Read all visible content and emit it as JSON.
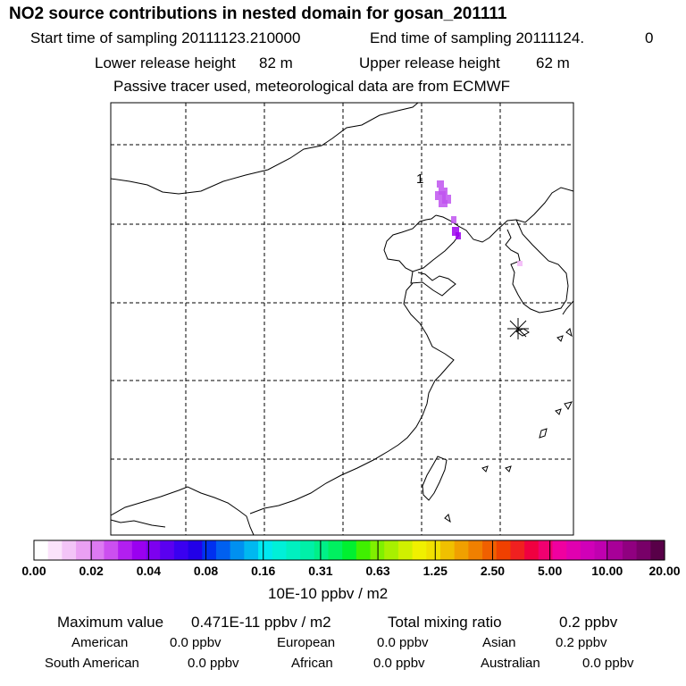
{
  "header": {
    "title": "NO2 source contributions in nested domain for gosan_201111",
    "start_label": "Start time of sampling 20111123.210000",
    "end_label": "End time of sampling 20111124.",
    "end_value": "0",
    "lower_label": "Lower release height",
    "lower_value": "82 m",
    "upper_label": "Upper release height",
    "upper_value": "62 m",
    "note": "Passive tracer used, meteorological data are from ECMWF"
  },
  "map": {
    "marker_label": "1",
    "receptor_symbol": "star-marker"
  },
  "colorbar": {
    "ticks": [
      "0.00",
      "0.02",
      "0.04",
      "0.08",
      "0.16",
      "0.31",
      "0.63",
      "1.25",
      "2.50",
      "5.00",
      "10.00",
      "20.00"
    ],
    "colors": [
      "#ffffff",
      "#fbe3fb",
      "#f3c4f7",
      "#eaa0f3",
      "#dd7af2",
      "#cc4ff0",
      "#b21ff0",
      "#9a00f0",
      "#7d00f0",
      "#5a00f0",
      "#3a00f0",
      "#2200e8",
      "#0030f0",
      "#0060f0",
      "#0090f0",
      "#00b8f0",
      "#00e8f0",
      "#00f0d8",
      "#00f0c0",
      "#00f0a8",
      "#00f088",
      "#00f060",
      "#00f030",
      "#40f000",
      "#80f000",
      "#a8f000",
      "#d0f000",
      "#f0f000",
      "#f0e000",
      "#f0c000",
      "#f0a000",
      "#f08000",
      "#f06000",
      "#f04000",
      "#f02020",
      "#f00040",
      "#f00070",
      "#f000a0",
      "#e000b0",
      "#d000b8",
      "#c000b0",
      "#a80098",
      "#900080",
      "#780068",
      "#580048"
    ],
    "units": "10E-10 ppbv / m2"
  },
  "stats": {
    "max_label": "Maximum value",
    "max_value": "0.471E-11 ppbv / m2",
    "total_label": "Total mixing ratio",
    "total_value": "0.2 ppbv",
    "regions": [
      {
        "name": "American",
        "value": "0.0 ppbv"
      },
      {
        "name": "European",
        "value": "0.0 ppbv"
      },
      {
        "name": "Asian",
        "value": "0.2 ppbv"
      },
      {
        "name": "South American",
        "value": "0.0 ppbv"
      },
      {
        "name": "African",
        "value": "0.0 ppbv"
      },
      {
        "name": "Australian",
        "value": "0.0 ppbv"
      }
    ]
  }
}
